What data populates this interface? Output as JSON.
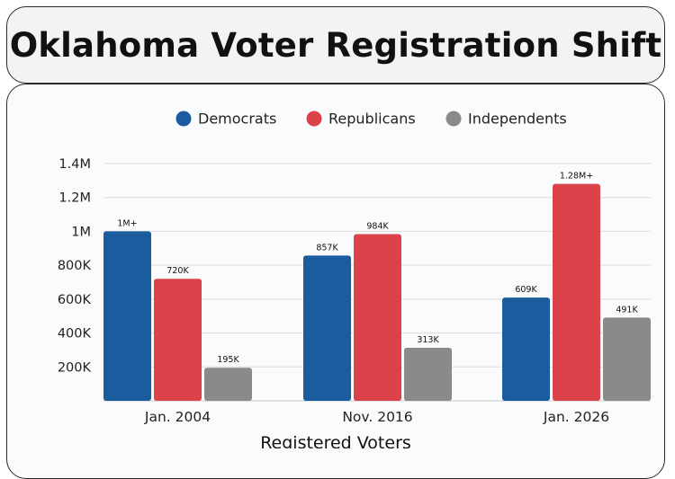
{
  "title": "Oklahoma Voter Registration Shift",
  "chart_data": {
    "type": "bar",
    "categories": [
      "Jan. 2004",
      "Nov. 2016",
      "Jan. 2026"
    ],
    "series": [
      {
        "name": "Democrats",
        "color": "#1b5c9e",
        "values": [
          1000000,
          857000,
          609000
        ],
        "labels": [
          "1M+",
          "857K",
          "609K"
        ]
      },
      {
        "name": "Republicans",
        "color": "#dc4249",
        "values": [
          720000,
          984000,
          1280000
        ],
        "labels": [
          "720K",
          "984K",
          "1.28M+"
        ]
      },
      {
        "name": "Independents",
        "color": "#8a8a88",
        "values": [
          195000,
          313000,
          491000
        ],
        "labels": [
          "195K",
          "313K",
          "491K"
        ]
      }
    ],
    "yticks": [
      {
        "value": 200000,
        "label": "200K"
      },
      {
        "value": 400000,
        "label": "400K"
      },
      {
        "value": 600000,
        "label": "600K"
      },
      {
        "value": 800000,
        "label": "800K"
      },
      {
        "value": 1000000,
        "label": "1M"
      },
      {
        "value": 1200000,
        "label": "1.2M"
      },
      {
        "value": 1400000,
        "label": "1.4M"
      }
    ],
    "ylim": [
      0,
      1400000
    ],
    "xlabel": "Registered Voters",
    "legend_position": "top-center",
    "grid": true
  }
}
